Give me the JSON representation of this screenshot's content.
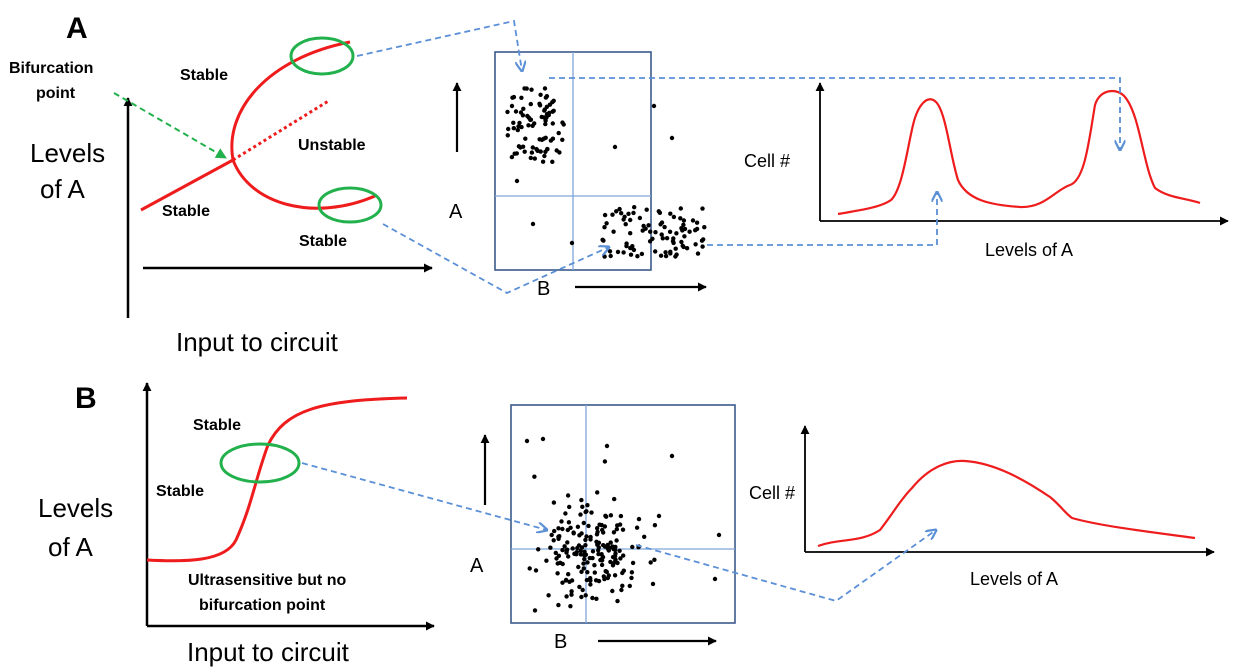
{
  "colors": {
    "curve": "#ee1c1c",
    "ellipse": "#22b14c",
    "dashed_blue": "#5b8fd6",
    "dashed_green": "#22b14c",
    "frame": "#3a5a8c",
    "grid": "#7fa6d9",
    "dots": "#000000"
  },
  "panelA": {
    "letter": "A",
    "bifurcation_label_1": "Bifurcation",
    "bifurcation_label_2": "point",
    "stable_top": "Stable",
    "unstable": "Unstable",
    "stable_left": "Stable",
    "stable_bottom": "Stable",
    "ylabel_1": "Levels",
    "ylabel_2": "of  A",
    "xlabel": "Input to circuit",
    "scatter_ylabel": "A",
    "scatter_xlabel": "B",
    "hist_ylabel": "Cell #",
    "hist_xlabel": "Levels of A"
  },
  "panelB": {
    "letter": "B",
    "stable_1": "Stable",
    "stable_2": "Stable",
    "note_1": "Ultrasensitive but no",
    "note_2": "bifurcation point",
    "ylabel_1": "Levels",
    "ylabel_2": "of  A",
    "xlabel": "Input to circuit",
    "scatter_ylabel": "A",
    "scatter_xlabel": "B",
    "hist_ylabel": "Cell #",
    "hist_xlabel": "Levels of A"
  }
}
